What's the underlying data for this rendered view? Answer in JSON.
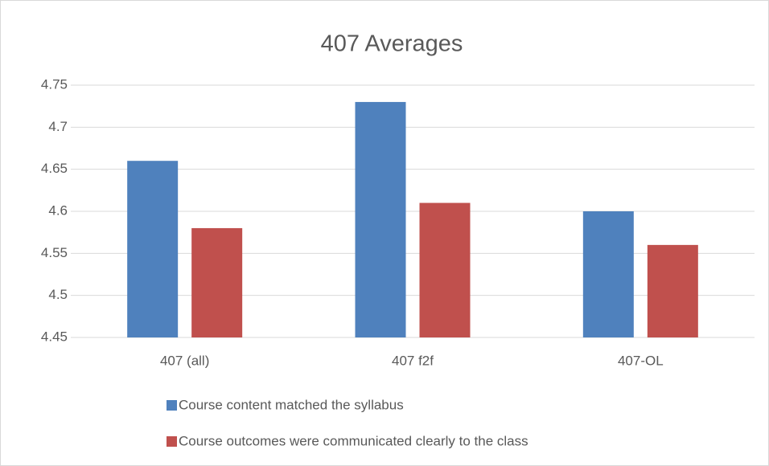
{
  "chart_data": {
    "type": "bar",
    "title": "407 Averages",
    "categories": [
      "407 (all)",
      "407 f2f",
      "407-OL"
    ],
    "series": [
      {
        "name": "Course content matched the syllabus",
        "color": "#4f81bd",
        "values": [
          4.66,
          4.73,
          4.6
        ]
      },
      {
        "name": "Course outcomes were communicated clearly to the class",
        "color": "#c0504d",
        "values": [
          4.58,
          4.61,
          4.56
        ]
      }
    ],
    "ylim": [
      4.45,
      4.75
    ],
    "yticks": [
      4.45,
      4.5,
      4.55,
      4.6,
      4.65,
      4.7,
      4.75
    ],
    "grid": true,
    "legend": "bottom"
  }
}
